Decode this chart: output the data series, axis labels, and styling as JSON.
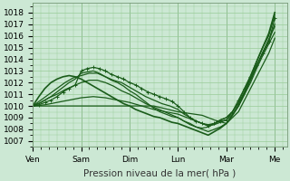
{
  "xlabel": "Pression niveau de la mer( hPa )",
  "background_color": "#cce8d4",
  "grid_color": "#99cc99",
  "line_color": "#1a5c1a",
  "ylim": [
    1006.5,
    1018.8
  ],
  "yticks": [
    1007,
    1008,
    1009,
    1010,
    1011,
    1012,
    1013,
    1014,
    1015,
    1016,
    1017,
    1018
  ],
  "day_labels": [
    "Ven",
    "Sam",
    "Dim",
    "Lun",
    "Mar",
    "Me"
  ],
  "day_positions": [
    0,
    48,
    96,
    144,
    192,
    240
  ],
  "xlim": [
    0,
    252
  ],
  "total_hours": 240,
  "series": [
    {
      "points": [
        [
          0,
          1010.0
        ],
        [
          6,
          1010.1
        ],
        [
          12,
          1010.3
        ],
        [
          18,
          1010.5
        ],
        [
          24,
          1010.8
        ],
        [
          30,
          1011.2
        ],
        [
          36,
          1011.5
        ],
        [
          42,
          1011.8
        ],
        [
          48,
          1013.0
        ],
        [
          54,
          1013.2
        ],
        [
          60,
          1013.3
        ],
        [
          66,
          1013.2
        ],
        [
          72,
          1013.0
        ],
        [
          78,
          1012.7
        ],
        [
          84,
          1012.5
        ],
        [
          90,
          1012.3
        ],
        [
          96,
          1012.0
        ],
        [
          102,
          1011.8
        ],
        [
          108,
          1011.5
        ],
        [
          114,
          1011.2
        ],
        [
          120,
          1011.0
        ],
        [
          126,
          1010.8
        ],
        [
          132,
          1010.6
        ],
        [
          138,
          1010.4
        ],
        [
          144,
          1010.0
        ],
        [
          150,
          1009.5
        ],
        [
          156,
          1009.0
        ],
        [
          162,
          1008.7
        ],
        [
          168,
          1008.5
        ],
        [
          174,
          1008.3
        ],
        [
          180,
          1008.5
        ],
        [
          186,
          1008.7
        ],
        [
          192,
          1008.8
        ],
        [
          198,
          1009.5
        ],
        [
          204,
          1010.5
        ],
        [
          210,
          1011.5
        ],
        [
          216,
          1012.5
        ],
        [
          222,
          1013.5
        ],
        [
          228,
          1014.5
        ],
        [
          234,
          1015.5
        ],
        [
          240,
          1017.5
        ]
      ],
      "marker": "+",
      "lw": 0.9
    },
    {
      "points": [
        [
          0,
          1010.0
        ],
        [
          6,
          1010.2
        ],
        [
          12,
          1010.5
        ],
        [
          18,
          1010.8
        ],
        [
          24,
          1011.2
        ],
        [
          30,
          1011.6
        ],
        [
          36,
          1012.0
        ],
        [
          42,
          1012.3
        ],
        [
          48,
          1012.8
        ],
        [
          54,
          1012.9
        ],
        [
          60,
          1013.0
        ],
        [
          66,
          1012.8
        ],
        [
          72,
          1012.5
        ],
        [
          78,
          1012.2
        ],
        [
          84,
          1012.0
        ],
        [
          90,
          1011.7
        ],
        [
          96,
          1011.3
        ],
        [
          102,
          1011.0
        ],
        [
          108,
          1010.6
        ],
        [
          114,
          1010.2
        ],
        [
          120,
          1009.8
        ],
        [
          126,
          1009.5
        ],
        [
          132,
          1009.3
        ],
        [
          138,
          1009.1
        ],
        [
          144,
          1009.0
        ],
        [
          150,
          1008.7
        ],
        [
          156,
          1008.4
        ],
        [
          162,
          1008.2
        ],
        [
          168,
          1008.1
        ],
        [
          174,
          1008.2
        ],
        [
          180,
          1008.5
        ],
        [
          186,
          1008.8
        ],
        [
          192,
          1009.0
        ],
        [
          198,
          1009.5
        ],
        [
          204,
          1010.2
        ],
        [
          210,
          1011.2
        ],
        [
          216,
          1012.3
        ],
        [
          222,
          1013.4
        ],
        [
          228,
          1014.5
        ],
        [
          234,
          1015.5
        ],
        [
          240,
          1017.0
        ]
      ],
      "marker": null,
      "lw": 0.9
    },
    {
      "points": [
        [
          0,
          1010.0
        ],
        [
          8,
          1010.5
        ],
        [
          16,
          1011.0
        ],
        [
          24,
          1011.5
        ],
        [
          32,
          1012.0
        ],
        [
          40,
          1012.4
        ],
        [
          48,
          1012.6
        ],
        [
          56,
          1012.8
        ],
        [
          64,
          1012.8
        ],
        [
          72,
          1012.5
        ],
        [
          80,
          1012.2
        ],
        [
          88,
          1012.0
        ],
        [
          96,
          1011.6
        ],
        [
          104,
          1011.2
        ],
        [
          112,
          1010.8
        ],
        [
          120,
          1010.5
        ],
        [
          128,
          1010.2
        ],
        [
          136,
          1010.0
        ],
        [
          144,
          1009.7
        ],
        [
          150,
          1009.3
        ],
        [
          156,
          1009.0
        ],
        [
          162,
          1008.7
        ],
        [
          168,
          1008.5
        ],
        [
          174,
          1008.4
        ],
        [
          180,
          1008.5
        ],
        [
          186,
          1008.8
        ],
        [
          192,
          1009.0
        ],
        [
          198,
          1009.5
        ],
        [
          204,
          1010.3
        ],
        [
          210,
          1011.5
        ],
        [
          216,
          1012.6
        ],
        [
          222,
          1013.8
        ],
        [
          228,
          1015.0
        ],
        [
          234,
          1016.0
        ],
        [
          240,
          1017.8
        ]
      ],
      "marker": null,
      "lw": 0.9
    },
    {
      "points": [
        [
          0,
          1010.0
        ],
        [
          8,
          1010.3
        ],
        [
          16,
          1010.7
        ],
        [
          24,
          1011.0
        ],
        [
          32,
          1011.4
        ],
        [
          40,
          1011.7
        ],
        [
          48,
          1012.0
        ],
        [
          56,
          1012.2
        ],
        [
          64,
          1012.2
        ],
        [
          72,
          1012.0
        ],
        [
          80,
          1011.7
        ],
        [
          88,
          1011.3
        ],
        [
          96,
          1011.0
        ],
        [
          104,
          1010.6
        ],
        [
          112,
          1010.2
        ],
        [
          120,
          1009.9
        ],
        [
          128,
          1009.6
        ],
        [
          136,
          1009.3
        ],
        [
          144,
          1009.0
        ],
        [
          150,
          1008.7
        ],
        [
          156,
          1008.5
        ],
        [
          162,
          1008.2
        ],
        [
          168,
          1008.0
        ],
        [
          174,
          1007.8
        ],
        [
          180,
          1008.0
        ],
        [
          186,
          1008.2
        ],
        [
          192,
          1008.5
        ],
        [
          198,
          1009.2
        ],
        [
          204,
          1010.0
        ],
        [
          210,
          1011.0
        ],
        [
          216,
          1012.2
        ],
        [
          222,
          1013.4
        ],
        [
          228,
          1014.6
        ],
        [
          234,
          1015.7
        ],
        [
          240,
          1016.8
        ]
      ],
      "marker": null,
      "lw": 0.9
    },
    {
      "points": [
        [
          0,
          1010.0
        ],
        [
          12,
          1010.1
        ],
        [
          24,
          1010.3
        ],
        [
          36,
          1010.5
        ],
        [
          48,
          1010.7
        ],
        [
          60,
          1010.8
        ],
        [
          72,
          1010.7
        ],
        [
          84,
          1010.5
        ],
        [
          96,
          1010.3
        ],
        [
          108,
          1010.0
        ],
        [
          120,
          1009.7
        ],
        [
          132,
          1009.5
        ],
        [
          144,
          1009.3
        ],
        [
          150,
          1009.1
        ],
        [
          156,
          1008.9
        ],
        [
          162,
          1008.7
        ],
        [
          168,
          1008.5
        ],
        [
          174,
          1008.3
        ],
        [
          180,
          1008.4
        ],
        [
          186,
          1008.6
        ],
        [
          192,
          1008.8
        ],
        [
          198,
          1009.3
        ],
        [
          204,
          1010.0
        ],
        [
          210,
          1011.0
        ],
        [
          216,
          1012.0
        ],
        [
          222,
          1013.2
        ],
        [
          228,
          1014.3
        ],
        [
          234,
          1015.3
        ],
        [
          240,
          1016.3
        ]
      ],
      "marker": null,
      "lw": 0.9
    },
    {
      "points": [
        [
          0,
          1010.0
        ],
        [
          24,
          1010.0
        ],
        [
          48,
          1010.0
        ],
        [
          72,
          1010.0
        ],
        [
          96,
          1010.0
        ],
        [
          120,
          1010.0
        ],
        [
          144,
          1009.5
        ],
        [
          168,
          1009.2
        ],
        [
          180,
          1008.8
        ],
        [
          192,
          1008.5
        ],
        [
          198,
          1009.0
        ],
        [
          204,
          1009.5
        ],
        [
          210,
          1010.5
        ],
        [
          216,
          1011.5
        ],
        [
          222,
          1012.5
        ],
        [
          228,
          1013.5
        ],
        [
          234,
          1014.5
        ],
        [
          240,
          1015.8
        ]
      ],
      "marker": null,
      "lw": 0.9
    },
    {
      "points": [
        [
          0,
          1010.0
        ],
        [
          6,
          1010.8
        ],
        [
          12,
          1011.5
        ],
        [
          18,
          1012.0
        ],
        [
          24,
          1012.3
        ],
        [
          30,
          1012.5
        ],
        [
          36,
          1012.6
        ],
        [
          42,
          1012.5
        ],
        [
          48,
          1012.3
        ],
        [
          54,
          1012.0
        ],
        [
          60,
          1011.7
        ],
        [
          66,
          1011.4
        ],
        [
          72,
          1011.1
        ],
        [
          78,
          1010.8
        ],
        [
          84,
          1010.5
        ],
        [
          90,
          1010.2
        ],
        [
          96,
          1010.0
        ],
        [
          102,
          1009.7
        ],
        [
          108,
          1009.5
        ],
        [
          114,
          1009.3
        ],
        [
          120,
          1009.1
        ],
        [
          126,
          1009.0
        ],
        [
          132,
          1008.8
        ],
        [
          138,
          1008.6
        ],
        [
          144,
          1008.5
        ],
        [
          150,
          1008.3
        ],
        [
          156,
          1008.1
        ],
        [
          162,
          1007.9
        ],
        [
          168,
          1007.7
        ],
        [
          174,
          1007.5
        ],
        [
          180,
          1007.8
        ],
        [
          186,
          1008.1
        ],
        [
          192,
          1008.5
        ],
        [
          198,
          1009.2
        ],
        [
          204,
          1010.0
        ],
        [
          210,
          1011.2
        ],
        [
          216,
          1012.5
        ],
        [
          222,
          1013.8
        ],
        [
          228,
          1015.0
        ],
        [
          234,
          1016.2
        ],
        [
          240,
          1018.0
        ]
      ],
      "marker": null,
      "lw": 1.2
    }
  ],
  "xlabel_fontsize": 7.5,
  "tick_fontsize": 6.5
}
